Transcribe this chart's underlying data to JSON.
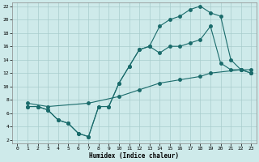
{
  "xlabel": "Humidex (Indice chaleur)",
  "background_color": "#ceeaea",
  "grid_color": "#a8cccc",
  "line_color": "#1a6b6b",
  "xlim": [
    -0.5,
    23.5
  ],
  "ylim": [
    1.5,
    22.5
  ],
  "xticks": [
    0,
    1,
    2,
    3,
    4,
    5,
    6,
    7,
    8,
    9,
    10,
    11,
    12,
    13,
    14,
    15,
    16,
    17,
    18,
    19,
    20,
    21,
    22,
    23
  ],
  "yticks": [
    2,
    4,
    6,
    8,
    10,
    12,
    14,
    16,
    18,
    20,
    22
  ],
  "line1_x": [
    1,
    2,
    3,
    4,
    5,
    6,
    7,
    8,
    9,
    10,
    11,
    12,
    13,
    14,
    15,
    16,
    17,
    18,
    19,
    20,
    21,
    22,
    23
  ],
  "line1_y": [
    7,
    7,
    6.5,
    5,
    4.5,
    3,
    2.5,
    7,
    7,
    10.5,
    13,
    15.5,
    16,
    19,
    20,
    20.5,
    21.5,
    22,
    21,
    20.5,
    14,
    12.5,
    12
  ],
  "line2_x": [
    1,
    2,
    3,
    4,
    5,
    6,
    7,
    8,
    9,
    10,
    11,
    12,
    13,
    14,
    15,
    16,
    17,
    18,
    19,
    20,
    21,
    22,
    23
  ],
  "line2_y": [
    7,
    7,
    6.5,
    5,
    4.5,
    3,
    2.5,
    7,
    7,
    10.5,
    13,
    15.5,
    16,
    15,
    16,
    16,
    16.5,
    17,
    19,
    13.5,
    12.5,
    12.5,
    12
  ],
  "line3_x": [
    1,
    3,
    7,
    10,
    12,
    14,
    16,
    18,
    19,
    22,
    23
  ],
  "line3_y": [
    7.5,
    7,
    7.5,
    8.5,
    9.5,
    10.5,
    11,
    11.5,
    12,
    12.5,
    12.5
  ],
  "marker_size": 2.5,
  "linewidth": 0.8
}
